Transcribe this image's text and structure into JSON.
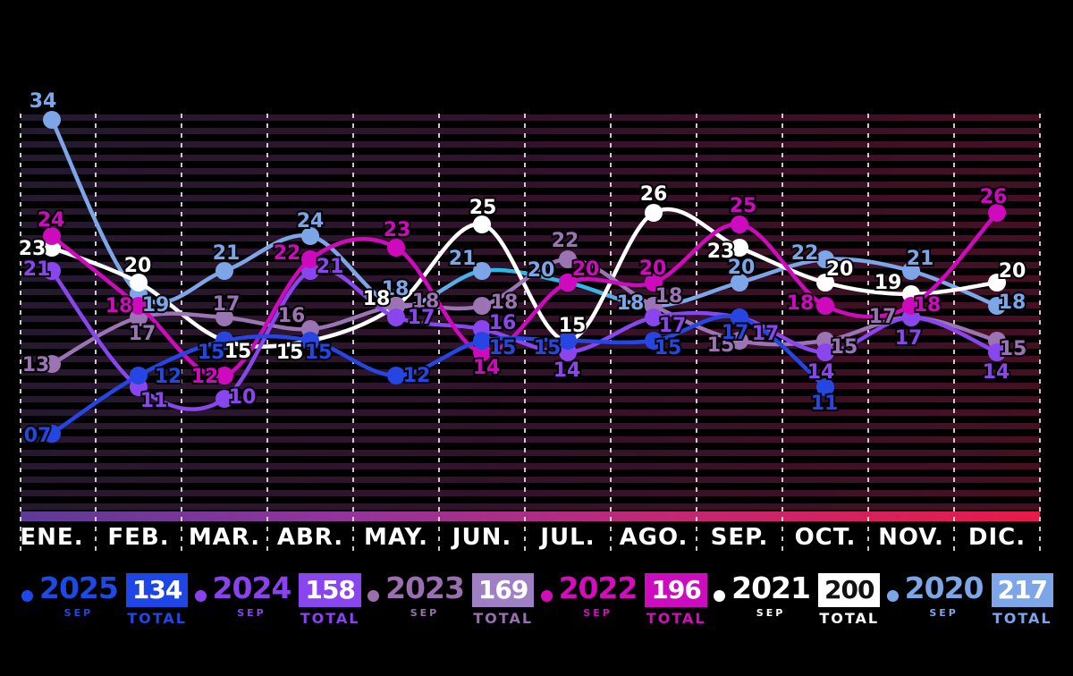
{
  "chart_data": {
    "type": "line",
    "title": "",
    "xlabel": "",
    "ylabel": "",
    "grid": "vertical-dashed",
    "legend_position": "bottom",
    "categories": [
      "ENE.",
      "FEB.",
      "MAR.",
      "ABR.",
      "MAY.",
      "JUN.",
      "JUL.",
      "AGO.",
      "SEP.",
      "OCT.",
      "NOV.",
      "DIC."
    ],
    "series": [
      {
        "name": "2020",
        "color": "#7CA6E8",
        "accent_segment_color": "#29B8E8",
        "values": [
          34,
          19,
          21,
          24,
          18,
          21,
          20,
          18,
          20,
          22,
          21,
          18
        ],
        "labels": [
          "34",
          "19",
          "21",
          "24",
          "18",
          "21",
          "20",
          "18",
          "20",
          "22",
          "21",
          "18"
        ],
        "label_offsets": [
          [
            -10,
            -22
          ],
          [
            19,
            11
          ],
          [
            2,
            -21
          ],
          [
            0,
            -18
          ],
          [
            -1,
            -20
          ],
          [
            -22,
            -15
          ],
          [
            -30,
            -15
          ],
          [
            -26,
            -4
          ],
          [
            2,
            -18
          ],
          [
            -23,
            -8
          ],
          [
            10,
            -15
          ],
          [
            17,
            -5
          ]
        ]
      },
      {
        "name": "2021",
        "color": "#FFFFFF",
        "values": [
          23,
          20,
          15,
          15,
          18,
          25,
          15,
          26,
          23,
          20,
          19,
          20
        ],
        "labels": [
          "23",
          "20",
          "15",
          "15",
          "18",
          "25",
          "15",
          "26",
          "23",
          "20",
          "19",
          "20"
        ],
        "label_offsets": [
          [
            -22,
            0
          ],
          [
            -1,
            -20
          ],
          [
            15,
            11
          ],
          [
            -23,
            12
          ],
          [
            -22,
            -9
          ],
          [
            1,
            -20
          ],
          [
            5,
            -18
          ],
          [
            0,
            -22
          ],
          [
            -21,
            3
          ],
          [
            16,
            -16
          ],
          [
            -26,
            -14
          ],
          [
            17,
            -14
          ]
        ]
      },
      {
        "name": "2023",
        "color": "#9B74B4",
        "values": [
          13,
          17,
          17,
          16,
          18,
          18,
          22,
          18,
          15,
          15,
          17,
          15
        ],
        "labels": [
          "13",
          "17",
          "17",
          "16",
          "18",
          "18",
          "22",
          "18",
          "15",
          "15",
          "17",
          "15"
        ],
        "label_offsets": [
          [
            -18,
            0
          ],
          [
            4,
            17
          ],
          [
            2,
            -16
          ],
          [
            -21,
            -16
          ],
          [
            33,
            -6
          ],
          [
            25,
            -5
          ],
          [
            -3,
            -22
          ],
          [
            17,
            -12
          ],
          [
            -21,
            4
          ],
          [
            21,
            6
          ],
          [
            -32,
            -2
          ],
          [
            18,
            8
          ]
        ]
      },
      {
        "name": "2024",
        "color": "#8A46EE",
        "values": [
          21,
          11,
          10,
          21,
          17,
          16,
          14,
          17,
          17,
          14,
          17,
          14
        ],
        "labels": [
          "21",
          "11",
          "10",
          "21",
          "17",
          "16",
          "14",
          "17",
          "17",
          "14",
          "17",
          "14"
        ],
        "label_offsets": [
          [
            -17,
            -3
          ],
          [
            17,
            14
          ],
          [
            20,
            -3
          ],
          [
            22,
            -6
          ],
          [
            28,
            -1
          ],
          [
            23,
            -8
          ],
          [
            -1,
            19
          ],
          [
            21,
            8
          ],
          [
            29,
            17
          ],
          [
            -5,
            21
          ],
          [
            -3,
            22
          ],
          [
            -1,
            21
          ]
        ]
      },
      {
        "name": "2022",
        "color": "#CF0ABE",
        "values": [
          24,
          18,
          12,
          22,
          23,
          14,
          20,
          20,
          25,
          18,
          18,
          26
        ],
        "labels": [
          "24",
          "18",
          "12",
          "22",
          "23",
          "14",
          "20",
          "20",
          "25",
          "18",
          "18",
          "26"
        ],
        "label_offsets": [
          [
            -1,
            -19
          ],
          [
            -22,
            -1
          ],
          [
            -22,
            0
          ],
          [
            -26,
            -8
          ],
          [
            1,
            -21
          ],
          [
            5,
            16
          ],
          [
            20,
            -16
          ],
          [
            -1,
            -17
          ],
          [
            4,
            -22
          ],
          [
            -28,
            -4
          ],
          [
            18,
            -2
          ],
          [
            -4,
            -19
          ]
        ]
      },
      {
        "name": "2025",
        "color": "#2546E2",
        "values": [
          7,
          12,
          15,
          15,
          12,
          15,
          15,
          15,
          17,
          11,
          null,
          null
        ],
        "labels": [
          "07",
          "12",
          "15",
          "15",
          "12",
          "15",
          "15",
          "15",
          "17",
          "11",
          null,
          null
        ],
        "label_offsets": [
          [
            -16,
            1
          ],
          [
            33,
            0
          ],
          [
            -15,
            12
          ],
          [
            9,
            12
          ],
          [
            23,
            -1
          ],
          [
            23,
            7
          ],
          [
            -23,
            7
          ],
          [
            16,
            7
          ],
          [
            -5,
            16
          ],
          [
            -1,
            17
          ],
          null,
          null
        ]
      }
    ]
  },
  "legend": {
    "items": [
      {
        "year": "2025",
        "period": "SEP",
        "total": "134",
        "total_label": "TOTAL",
        "color": "#1E49E8",
        "box_color": "#1E46E6",
        "box_text_color": "#FFFFFF"
      },
      {
        "year": "2024",
        "period": "SEP",
        "total": "158",
        "total_label": "TOTAL",
        "color": "#8A42EE",
        "box_color": "#8A46EE",
        "box_text_color": "#FFFFFF"
      },
      {
        "year": "2023",
        "period": "SEP",
        "total": "169",
        "total_label": "TOTAL",
        "color": "#9A6FB0",
        "box_color": "#A080C4",
        "box_text_color": "#FFFFFF"
      },
      {
        "year": "2022",
        "period": "SEP",
        "total": "196",
        "total_label": "TOTAL",
        "color": "#D40CBC",
        "box_color": "#CC0CBE",
        "box_text_color": "#FFFFFF"
      },
      {
        "year": "2021",
        "period": "SEP",
        "total": "200",
        "total_label": "TOTAL",
        "color": "#FFFFFF",
        "box_color": "#FFFFFF",
        "box_text_color": "#111111"
      },
      {
        "year": "2020",
        "period": "SEP",
        "total": "217",
        "total_label": "TOTAL",
        "color": "#7CA6E8",
        "box_color": "#7CA6E8",
        "box_text_color": "#FFFFFF"
      }
    ]
  }
}
